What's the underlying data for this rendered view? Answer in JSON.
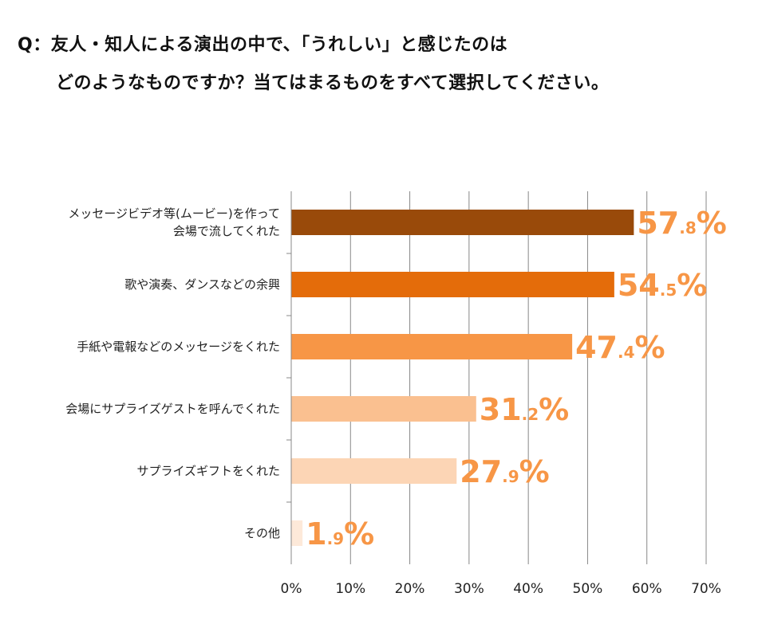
{
  "chart_data": {
    "type": "bar",
    "orientation": "horizontal",
    "title": "Q：友人・知人による演出の中で、「うれしい」と感じたのは",
    "subtitle": "どのようなものですか？当てはまるものをすべて選択してください。",
    "categories": [
      [
        "メッセージビデオ等(ムービー)を作って",
        "会場で流してくれた"
      ],
      [
        "歌や演奏、ダンスなどの余興"
      ],
      [
        "手紙や電報などのメッセージをくれた"
      ],
      [
        "会場にサプライズゲストを呼んでくれた"
      ],
      [
        "サプライズギフトをくれた"
      ],
      [
        "その他"
      ]
    ],
    "values": [
      57.8,
      54.5,
      47.4,
      31.2,
      27.9,
      1.9
    ],
    "data_labels": [
      "57.8%",
      "54.5%",
      "47.4%",
      "31.2%",
      "27.9%",
      "1.9%"
    ],
    "colors": [
      "#994A0A",
      "#E46C0A",
      "#F79646",
      "#FAC090",
      "#FCD5B5",
      "#FDE9D9"
    ],
    "label_color": "#F79646",
    "xlim": [
      0,
      70
    ],
    "xticks": [
      "0%",
      "10%",
      "20%",
      "30%",
      "40%",
      "50%",
      "60%",
      "70%"
    ],
    "grid": true,
    "xlabel": "",
    "ylabel": ""
  }
}
